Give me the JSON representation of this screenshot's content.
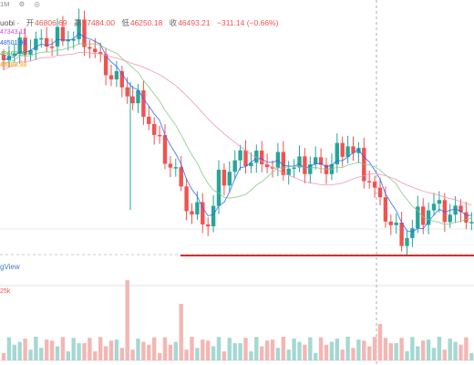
{
  "toolbar": {
    "interval": "1M",
    "icon1": "settings-icon",
    "icon2": "camera-icon"
  },
  "header": {
    "symbol": "uobi",
    "open_label": "开",
    "open": "46806.69",
    "high_label": "高",
    "high": "47484.00",
    "low_label": "低",
    "low": "46250.18",
    "close_label": "收",
    "close": "46493.21",
    "change": "−311.14 (−0.66%)"
  },
  "ma_labels": [
    {
      "text": "47343.11",
      "color": "#e040fb"
    },
    {
      "text": "48501.96",
      "color": "#2962ff"
    },
    {
      "text": "48669.68",
      "color": "#4caf50"
    },
    {
      "text": "49388.38",
      "color": "#ff9800"
    }
  ],
  "watermark": "gView",
  "volume_label": "25k",
  "colors": {
    "up": "#26a69a",
    "down": "#ef5350",
    "support": "#d32f2f"
  }
}
